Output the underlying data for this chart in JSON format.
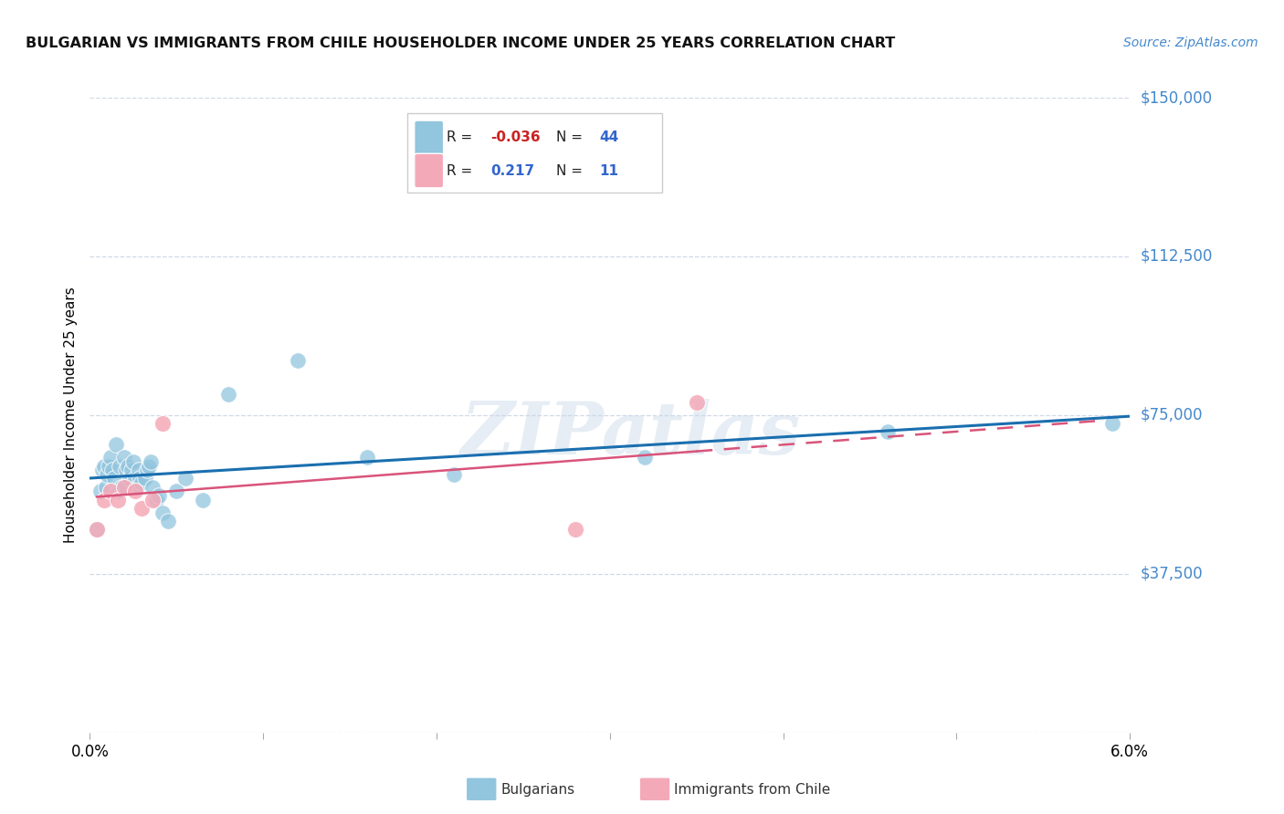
{
  "title": "BULGARIAN VS IMMIGRANTS FROM CHILE HOUSEHOLDER INCOME UNDER 25 YEARS CORRELATION CHART",
  "source": "Source: ZipAtlas.com",
  "ylabel": "Householder Income Under 25 years",
  "xlim": [
    0.0,
    6.0
  ],
  "ylim": [
    0,
    150000
  ],
  "yticks": [
    0,
    37500,
    75000,
    112500,
    150000
  ],
  "ytick_labels": [
    "",
    "$37,500",
    "$75,000",
    "$112,500",
    "$150,000"
  ],
  "bg_color": "#ffffff",
  "grid_color": "#d0d8e8",
  "watermark_text": "ZIPatlas",
  "bulgarian_color": "#92c5de",
  "chile_color": "#f4a9b8",
  "trend_bulgarian_color": "#1a6faf",
  "trend_chile_color": "#d9547a",
  "R_bulgarian": -0.036,
  "N_bulgarian": 44,
  "R_chile": 0.217,
  "N_chile": 11,
  "bulgarian_x": [
    0.04,
    0.06,
    0.07,
    0.08,
    0.09,
    0.1,
    0.11,
    0.12,
    0.13,
    0.14,
    0.15,
    0.16,
    0.17,
    0.18,
    0.2,
    0.21,
    0.22,
    0.23,
    0.24,
    0.25,
    0.26,
    0.27,
    0.28,
    0.29,
    0.3,
    0.32,
    0.33,
    0.34,
    0.35,
    0.36,
    0.38,
    0.4,
    0.42,
    0.45,
    0.5,
    0.55,
    0.65,
    0.8,
    1.2,
    1.6,
    2.1,
    3.2,
    4.6,
    5.9
  ],
  "bulgarian_y": [
    48000,
    57000,
    62000,
    63000,
    58000,
    61000,
    63000,
    65000,
    62000,
    60000,
    68000,
    57000,
    63000,
    58000,
    65000,
    62000,
    63000,
    60000,
    62000,
    64000,
    60000,
    58000,
    62000,
    60000,
    59000,
    60000,
    62000,
    63000,
    64000,
    58000,
    55000,
    56000,
    52000,
    50000,
    57000,
    60000,
    55000,
    80000,
    88000,
    65000,
    61000,
    65000,
    71000,
    73000
  ],
  "chile_x": [
    0.04,
    0.08,
    0.12,
    0.16,
    0.2,
    0.26,
    0.3,
    0.36,
    0.42,
    2.8,
    3.5
  ],
  "chile_y": [
    48000,
    55000,
    57000,
    55000,
    58000,
    57000,
    53000,
    55000,
    73000,
    48000,
    78000
  ],
  "legend_labels_bottom": [
    "Bulgarians",
    "Immigrants from Chile"
  ]
}
